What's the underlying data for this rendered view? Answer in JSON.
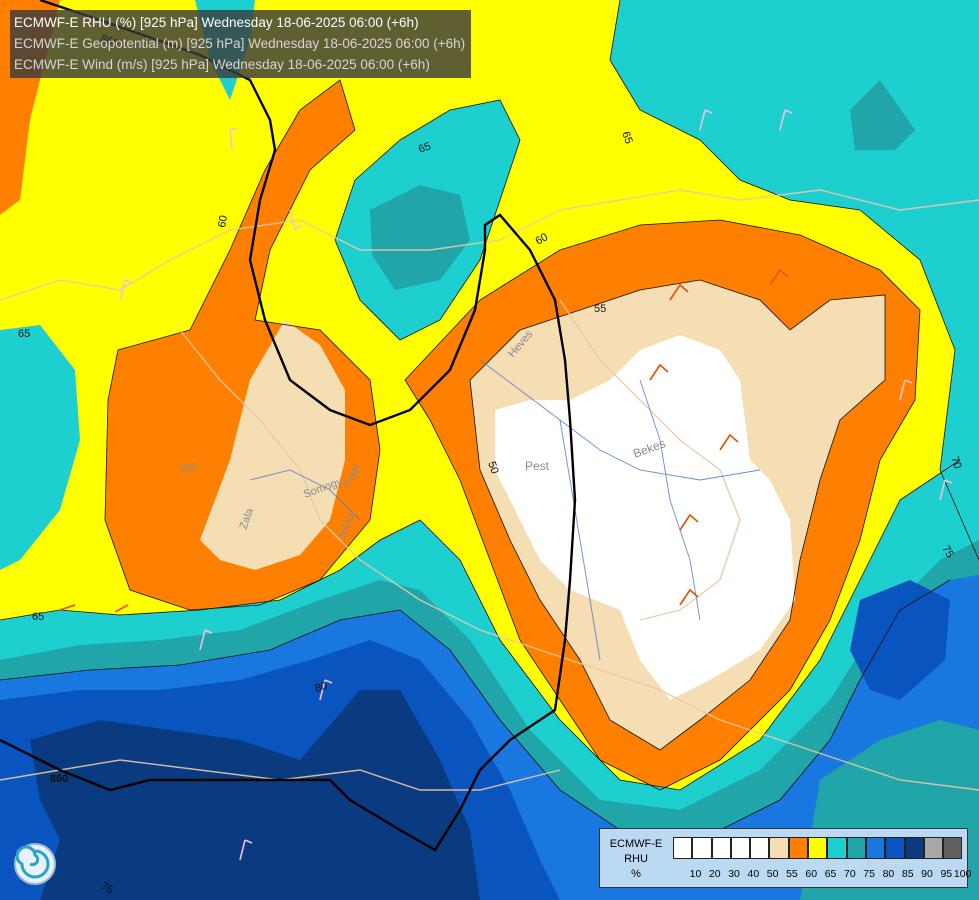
{
  "titles": {
    "line1": "ECMWF-E RHU (%) [925 hPa] Wednesday 18-06-2025 06:00 (+6h)",
    "line2": "ECMWF-E Geopotential (m) [925 hPa] Wednesday 18-06-2025 06:00 (+6h)",
    "line3": "ECMWF-E Wind (m/s) [925 hPa] Wednesday 18-06-2025 06:00 (+6h)"
  },
  "map_labels": {
    "rhu_contours": [
      "65",
      "65",
      "65",
      "60",
      "60",
      "55",
      "50",
      "65",
      "70",
      "75",
      "80",
      "75"
    ],
    "geopotential_contours": [
      "860",
      "860"
    ],
    "regions": [
      "Vas",
      "Zala",
      "Somogy",
      "Fejer",
      "Tolna",
      "Pest",
      "Bekes",
      "Heves"
    ]
  },
  "legend": {
    "title_lines": [
      "ECMWF-E",
      "RHU",
      "%"
    ],
    "ticks": [
      "10",
      "20",
      "30",
      "40",
      "50",
      "55",
      "60",
      "65",
      "70",
      "75",
      "80",
      "85",
      "90",
      "95",
      "100"
    ],
    "colors": [
      "#ffffff",
      "#ffffff",
      "#ffffff",
      "#ffffff",
      "#ffffff",
      "#f5deb3",
      "#ff8000",
      "#ffff00",
      "#1ecfd0",
      "#20a5a8",
      "#1878e0",
      "#0a54c0",
      "#0a3a80",
      "#a8a8a8",
      "#606060"
    ]
  },
  "colors": {
    "yellow": "#ffff00",
    "orange": "#ff8000",
    "wheat": "#f5deb3",
    "cyan": "#1ecfd0",
    "teal": "#20a5a8",
    "blue": "#1878e0",
    "deep_blue": "#0a54c0",
    "navy": "#0a3a80"
  },
  "icons": [
    "ecmwf-swirl-logo",
    "wind-barb-icon"
  ]
}
